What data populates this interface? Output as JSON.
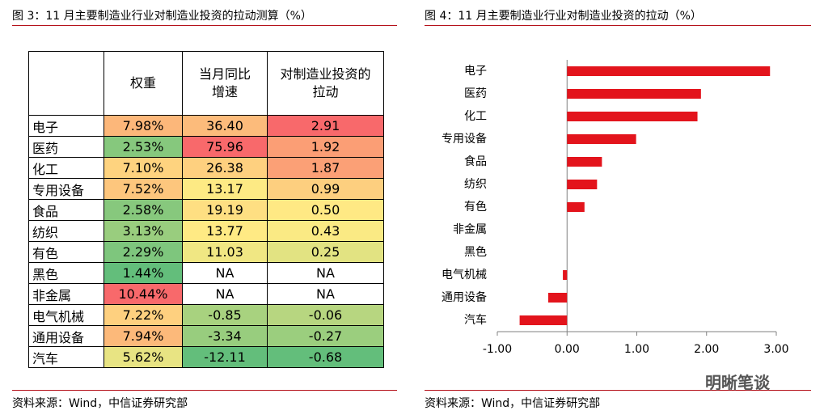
{
  "figure3": {
    "title": "图 3：11 月主要制造业行业对制造业投资的拉动测算（%）",
    "table": {
      "header": [
        "权重",
        "当月同比增速",
        "对制造业投资的拉动"
      ],
      "rows": [
        [
          "电子",
          "7.98%",
          "36.40",
          "2.91"
        ],
        [
          "医药",
          "2.53%",
          "75.96",
          "1.92"
        ],
        [
          "化工",
          "7.10%",
          "26.38",
          "1.87"
        ],
        [
          "专用设备",
          "7.52%",
          "13.17",
          "0.99"
        ],
        [
          "食品",
          "2.58%",
          "19.19",
          "0.50"
        ],
        [
          "纺织",
          "3.13%",
          "13.77",
          "0.43"
        ],
        [
          "有色",
          "2.29%",
          "11.03",
          "0.25"
        ],
        [
          "黑色",
          "1.44%",
          "NA",
          "NA"
        ],
        [
          "非金属",
          "10.44%",
          "NA",
          "NA"
        ],
        [
          "电气机械",
          "7.22%",
          "-0.85",
          "-0.06"
        ],
        [
          "通用设备",
          "7.94%",
          "-3.34",
          "-0.27"
        ],
        [
          "汽车",
          "5.62%",
          "-12.11",
          "-0.68"
        ]
      ]
    },
    "source": "资料来源：Wind，中信证券研究部"
  },
  "chart_data": {
    "type": "bar",
    "orientation": "horizontal",
    "title": "图 4：11 月主要制造业行业对制造业投资的拉动（%）",
    "categories": [
      "电子",
      "医药",
      "化工",
      "专用设备",
      "食品",
      "纺织",
      "有色",
      "非金属",
      "黑色",
      "电气机械",
      "通用设备",
      "汽车"
    ],
    "values": [
      2.91,
      1.92,
      1.87,
      0.99,
      0.5,
      0.43,
      0.25,
      null,
      null,
      -0.06,
      -0.27,
      -0.68
    ],
    "color": "#e3141c",
    "xlim": [
      -1,
      3
    ],
    "xticks": [
      {
        "value": -1,
        "label": "-1.00"
      },
      {
        "value": 0,
        "label": "0.00"
      },
      {
        "value": 1,
        "label": "1.00"
      },
      {
        "value": 2,
        "label": "2.00"
      },
      {
        "value": 3,
        "label": "3.00"
      }
    ]
  },
  "chart_source": "资料来源：Wind，中信证券研究部",
  "watermark": "明晰笔谈"
}
